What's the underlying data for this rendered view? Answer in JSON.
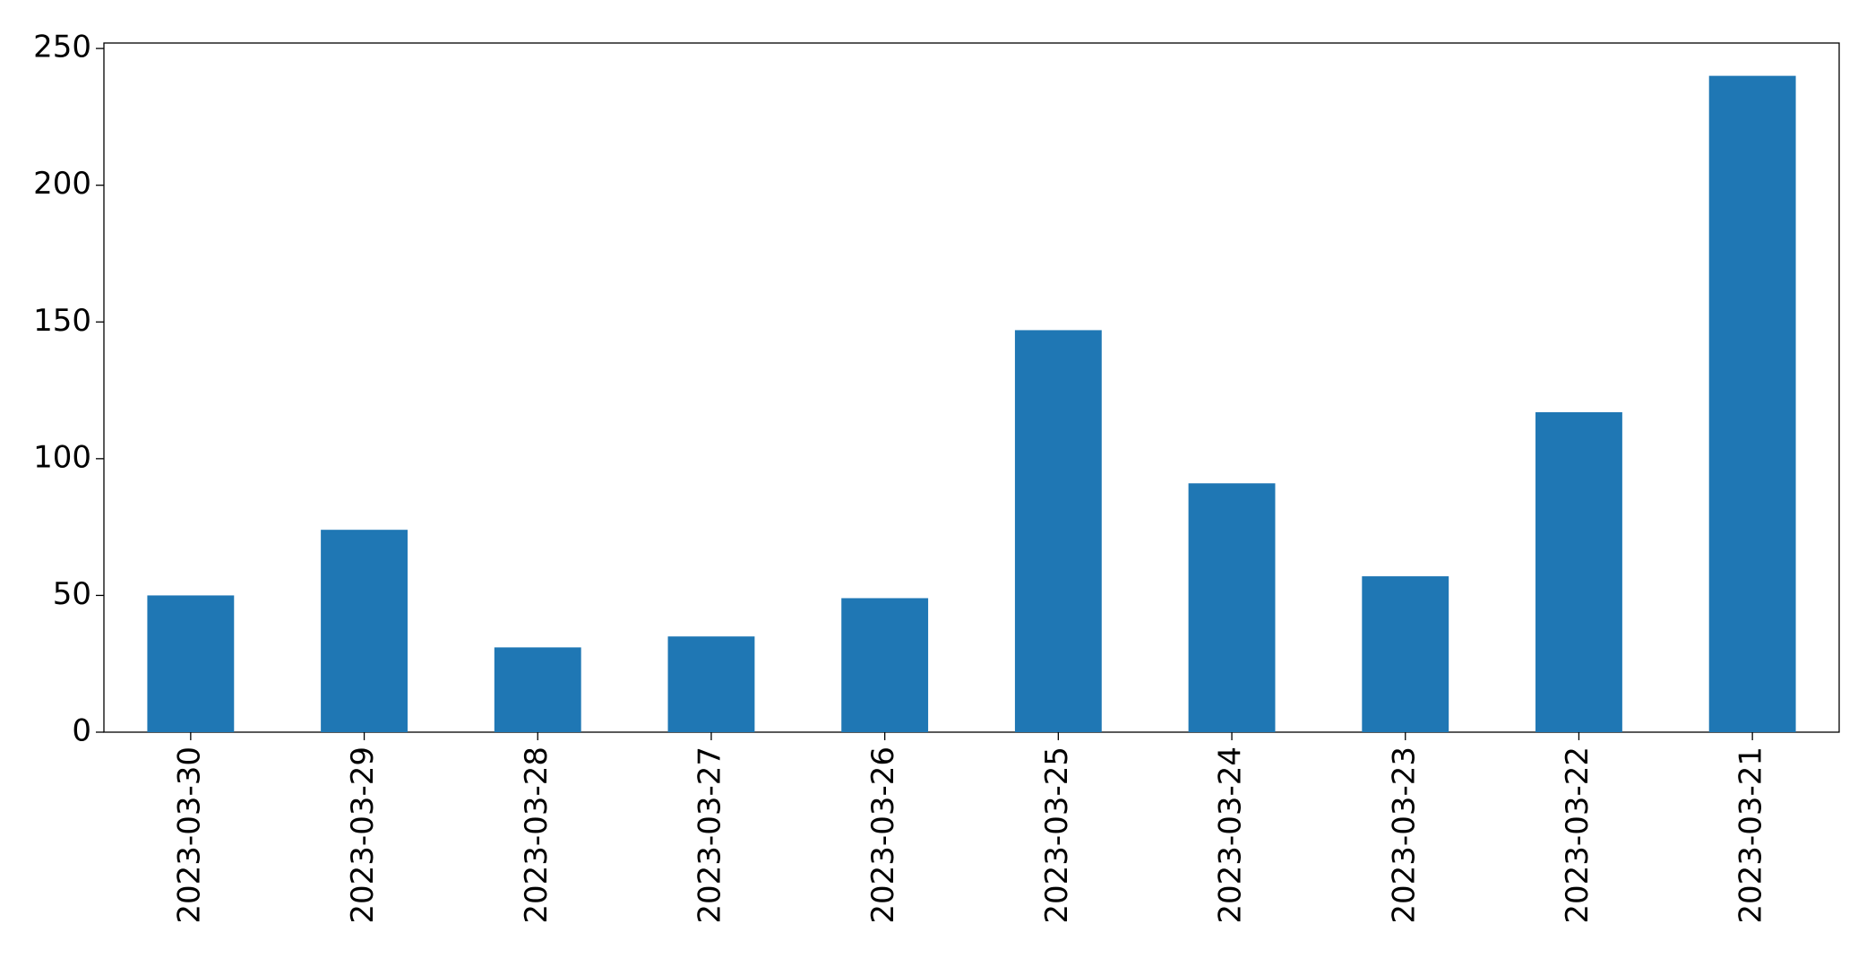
{
  "chart_data": {
    "type": "bar",
    "categories": [
      "2023-03-30",
      "2023-03-29",
      "2023-03-28",
      "2023-03-27",
      "2023-03-26",
      "2023-03-25",
      "2023-03-24",
      "2023-03-23",
      "2023-03-22",
      "2023-03-21"
    ],
    "values": [
      50,
      74,
      31,
      35,
      49,
      147,
      91,
      57,
      117,
      240
    ],
    "color": "#1f77b4",
    "ylim": [
      0,
      252
    ],
    "yticks": [
      0,
      50,
      100,
      150,
      200,
      250
    ],
    "grid": false
  }
}
